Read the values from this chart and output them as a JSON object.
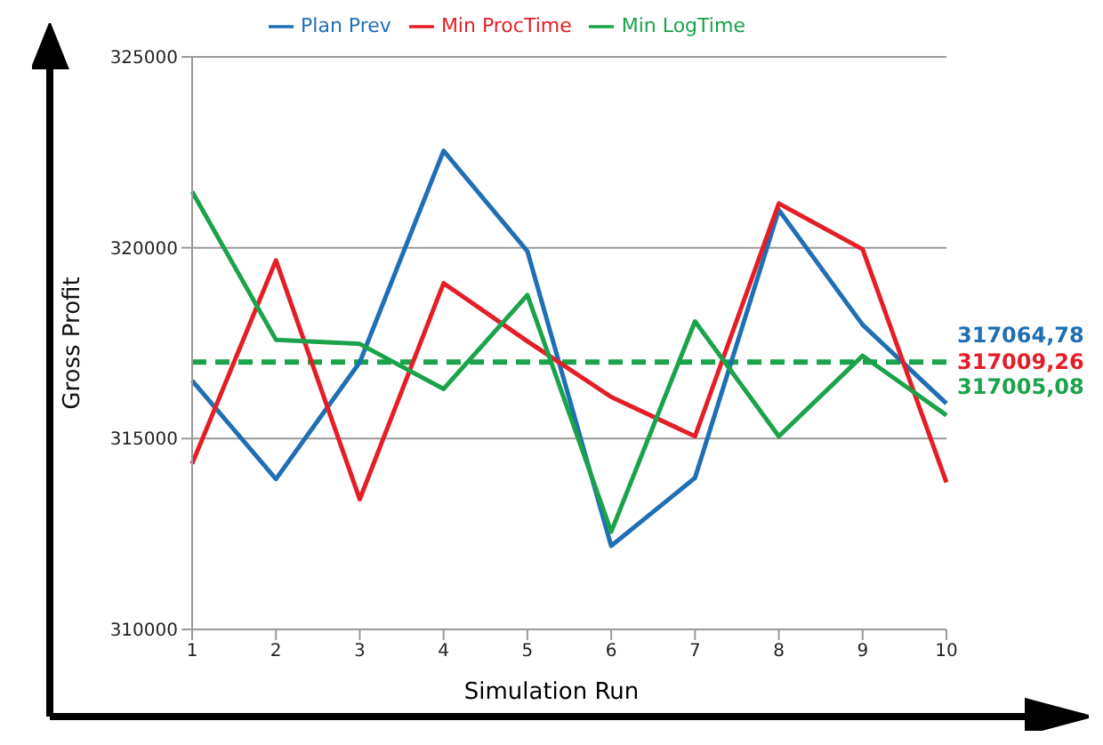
{
  "chart_data": {
    "type": "line",
    "xlabel": "Simulation Run",
    "ylabel": "Gross Profit",
    "categories": [
      "1",
      "2",
      "3",
      "4",
      "5",
      "6",
      "7",
      "8",
      "9",
      "10"
    ],
    "series": [
      {
        "name": "Plan Prev",
        "color": "#1f6fb5",
        "values": [
          316520,
          313940,
          317000,
          322540,
          319910,
          312190,
          313970,
          320990,
          317980,
          315920
        ]
      },
      {
        "name": "Min ProcTime",
        "color": "#e41e26",
        "values": [
          314340,
          319670,
          313410,
          319070,
          317550,
          316090,
          315060,
          321160,
          319960,
          313850
        ]
      },
      {
        "name": "Min LogTime",
        "color": "#1aa34a",
        "values": [
          321470,
          317590,
          317480,
          316300,
          318760,
          312560,
          318070,
          315060,
          317170,
          315610
        ]
      }
    ],
    "ylim": [
      310000,
      325000
    ],
    "yticks": [
      310000,
      315000,
      320000,
      325000
    ],
    "grid": "y",
    "legend": "top",
    "marker": "none",
    "line_style": "solid",
    "ref_lines": [
      {
        "axis": "y",
        "value": 317005.08,
        "color": "#1aa34a",
        "line_style": "dashed"
      }
    ],
    "annotations": [
      {
        "text": "317064,78",
        "x": "10",
        "y": 317064.78
      },
      {
        "text": "317009,26",
        "x": "10",
        "y": 317009.26
      },
      {
        "text": "317005,08",
        "x": "10",
        "y": 317005.08
      }
    ]
  }
}
